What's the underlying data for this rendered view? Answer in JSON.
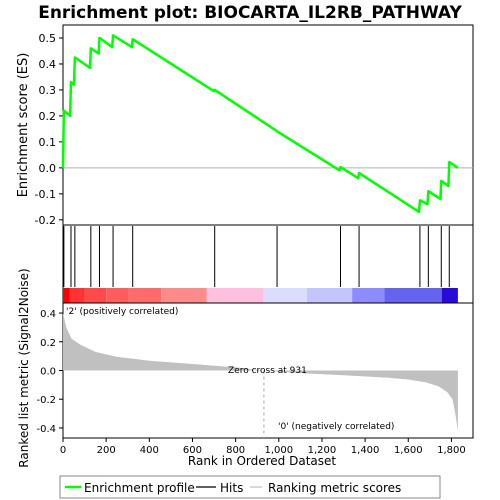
{
  "chart_data": {
    "type": "line",
    "title": "Enrichment plot: BIOCARTA_IL2RB_PATHWAY",
    "es_panel": {
      "ylabel": "Enrichment score (ES)",
      "ylim": [
        -0.22,
        0.55
      ],
      "y_ticks": [
        "0.5",
        "0.4",
        "0.3",
        "0.2",
        "0.1",
        "0.0",
        "-0.1",
        "-0.2"
      ],
      "y_tick_values": [
        0.5,
        0.4,
        0.3,
        0.2,
        0.1,
        0.0,
        -0.1,
        -0.2
      ],
      "series": [
        {
          "name": "Enrichment profile",
          "color": "#00ff00",
          "x": [
            0,
            4,
            33,
            37,
            51,
            55,
            125,
            129,
            165,
            169,
            228,
            232,
            319,
            323,
            699,
            703,
            988,
            992,
            1282,
            1286,
            1368,
            1372,
            1650,
            1654,
            1689,
            1693,
            1749,
            1753,
            1786,
            1790,
            1830
          ],
          "y": [
            0.0,
            0.22,
            0.2,
            0.33,
            0.32,
            0.425,
            0.385,
            0.46,
            0.44,
            0.5,
            0.465,
            0.51,
            0.465,
            0.495,
            0.295,
            0.3,
            0.143,
            0.14,
            -0.01,
            0.003,
            -0.04,
            -0.02,
            -0.17,
            -0.125,
            -0.14,
            -0.09,
            -0.12,
            -0.05,
            -0.07,
            0.022,
            0.0
          ]
        }
      ]
    },
    "hits": {
      "name": "Hits",
      "positions": [
        4,
        37,
        55,
        129,
        169,
        232,
        323,
        703,
        992,
        1286,
        1372,
        1654,
        1693,
        1753,
        1790
      ]
    },
    "ranking_panel": {
      "ylabel": "Ranked list metric (Signal2Noise)",
      "xlabel": "Rank in Ordered Dataset",
      "ylim": [
        -0.47,
        0.47
      ],
      "y_ticks": [
        "0.4",
        "0.2",
        "0.0",
        "-0.2",
        "-0.4"
      ],
      "y_tick_values": [
        0.4,
        0.2,
        0.0,
        -0.2,
        -0.4
      ],
      "xlim": [
        0,
        1900
      ],
      "x_ticks": [
        "0",
        "200",
        "400",
        "600",
        "800",
        "1,000",
        "1,200",
        "1,400",
        "1,600",
        "1,800"
      ],
      "x_tick_values": [
        0,
        200,
        400,
        600,
        800,
        1000,
        1200,
        1400,
        1600,
        1800
      ],
      "n_genes": 1830,
      "zero_cross": 931,
      "metric_profile": {
        "x": [
          0,
          15,
          40,
          80,
          150,
          250,
          400,
          600,
          800,
          931,
          1100,
          1300,
          1500,
          1600,
          1680,
          1740,
          1780,
          1805,
          1818,
          1830
        ],
        "y": [
          0.4,
          0.3,
          0.22,
          0.18,
          0.13,
          0.095,
          0.068,
          0.045,
          0.022,
          0.0,
          -0.018,
          -0.033,
          -0.05,
          -0.063,
          -0.082,
          -0.11,
          -0.15,
          -0.2,
          -0.3,
          -0.42
        ]
      },
      "annotations": {
        "zero_cross_label": "Zero cross at 931",
        "positive_label": "'2' (positively correlated)",
        "negative_label": "'0' (negatively correlated)"
      },
      "colors": {
        "positive_text": "#ff0000",
        "negative_text": "#0000ff",
        "fill": "#c0c0c0"
      }
    },
    "color_band": {
      "segments": [
        {
          "end": 30,
          "color": "#ff0000"
        },
        {
          "end": 100,
          "color": "#ff3333"
        },
        {
          "end": 200,
          "color": "#ff4a4a"
        },
        {
          "end": 305,
          "color": "#ff5c5c"
        },
        {
          "end": 455,
          "color": "#ff6b6b"
        },
        {
          "end": 665,
          "color": "#ff8a8a"
        },
        {
          "end": 930,
          "color": "#ffc0e0"
        },
        {
          "end": 1130,
          "color": "#dcdcff"
        },
        {
          "end": 1340,
          "color": "#c4c4ff"
        },
        {
          "end": 1490,
          "color": "#8c8cff"
        },
        {
          "end": 1755,
          "color": "#6464ee"
        },
        {
          "end": 1830,
          "color": "#2a0ad8"
        }
      ]
    },
    "legend": {
      "items": [
        {
          "label": "Enrichment profile",
          "color": "#00ff00"
        },
        {
          "label": "Hits",
          "color": "#000000"
        },
        {
          "label": "Ranking metric scores",
          "color": "#c0c0c0"
        }
      ]
    }
  }
}
